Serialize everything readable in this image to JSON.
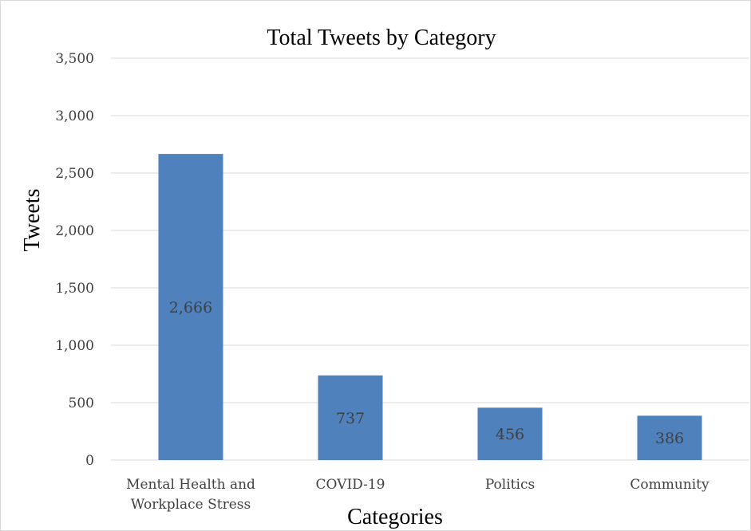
{
  "chart_data": {
    "type": "bar",
    "title": "Total Tweets by Category",
    "xlabel": "Categories",
    "ylabel": "Tweets",
    "categories": [
      [
        "Mental Health and",
        "Workplace Stress"
      ],
      [
        "COVID-19"
      ],
      [
        "Politics"
      ],
      [
        "Community"
      ]
    ],
    "values": [
      2666,
      737,
      456,
      386
    ],
    "data_labels": [
      "2,666",
      "737",
      "456",
      "386"
    ],
    "ylim": [
      0,
      3500
    ],
    "yticks": [
      0,
      500,
      1000,
      1500,
      2000,
      2500,
      3000,
      3500
    ],
    "ytick_labels": [
      "0",
      "500",
      "1,000",
      "1,500",
      "2,000",
      "2,500",
      "3,000",
      "3,500"
    ],
    "grid": true,
    "legend": "none",
    "colors": {
      "bar": "#4f81bd",
      "gridline": "#d9d9d9",
      "axis": "#d9d9d9"
    }
  }
}
